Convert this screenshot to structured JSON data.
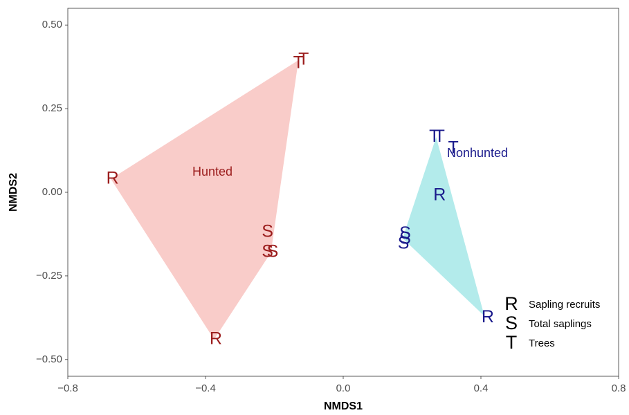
{
  "chart_data": {
    "type": "scatter",
    "xlabel": "NMDS1",
    "ylabel": "NMDS2",
    "xlim": [
      -0.8,
      0.8
    ],
    "ylim": [
      -0.55,
      0.55
    ],
    "xticks": [
      "−0.8",
      "−0.4",
      "0.0",
      "0.4",
      "0.8"
    ],
    "yticks": [
      "−0.50",
      "−0.25",
      "0.00",
      "0.25",
      "0.50"
    ],
    "grid": false,
    "legend_position": "bottom-right",
    "groups": [
      {
        "name": "Hunted",
        "label_pos": [
          -0.38,
          0.06
        ],
        "text_color": "#9b1c1c",
        "fill_color": "#f8c3c0",
        "hull": [
          [
            -0.675,
            0.04
          ],
          [
            -0.13,
            0.395
          ],
          [
            -0.21,
            -0.18
          ],
          [
            -0.375,
            -0.44
          ]
        ],
        "points": [
          {
            "sym": "T",
            "x": -0.13,
            "y": 0.385
          },
          {
            "sym": "T",
            "x": -0.115,
            "y": 0.395
          },
          {
            "sym": "R",
            "x": -0.67,
            "y": 0.04
          },
          {
            "sym": "S",
            "x": -0.22,
            "y": -0.12
          },
          {
            "sym": "S",
            "x": -0.22,
            "y": -0.18
          },
          {
            "sym": "S",
            "x": -0.205,
            "y": -0.18
          },
          {
            "sym": "R",
            "x": -0.37,
            "y": -0.44
          }
        ]
      },
      {
        "name": "Nonhunted",
        "label_pos": [
          0.39,
          0.115
        ],
        "text_color": "#1a1a8c",
        "fill_color": "#a6e8e8",
        "hull": [
          [
            0.27,
            0.165
          ],
          [
            0.41,
            -0.37
          ],
          [
            0.175,
            -0.14
          ],
          [
            0.175,
            -0.13
          ]
        ],
        "points": [
          {
            "sym": "T",
            "x": 0.265,
            "y": 0.165
          },
          {
            "sym": "T",
            "x": 0.28,
            "y": 0.165
          },
          {
            "sym": "T",
            "x": 0.32,
            "y": 0.13
          },
          {
            "sym": "R",
            "x": 0.28,
            "y": -0.01
          },
          {
            "sym": "S",
            "x": 0.18,
            "y": -0.125
          },
          {
            "sym": "S",
            "x": 0.18,
            "y": -0.14
          },
          {
            "sym": "S",
            "x": 0.175,
            "y": -0.155
          },
          {
            "sym": "R",
            "x": 0.42,
            "y": -0.375
          }
        ]
      }
    ],
    "legend": [
      {
        "sym": "R",
        "label": "Sapling recruits"
      },
      {
        "sym": "S",
        "label": "Total saplings"
      },
      {
        "sym": "T",
        "label": "Trees"
      }
    ]
  }
}
